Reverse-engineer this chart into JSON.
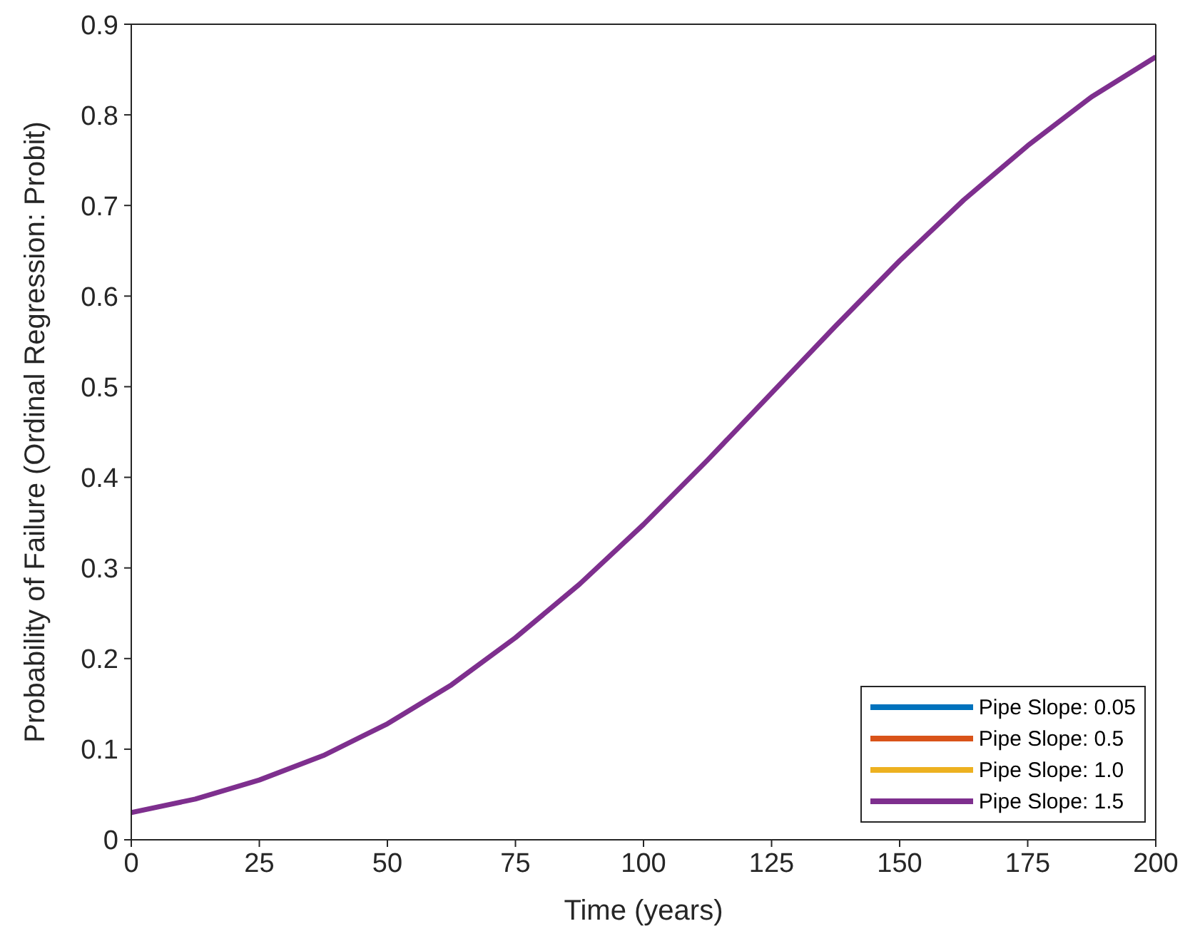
{
  "chart_data": {
    "type": "line",
    "xlabel": "Time (years)",
    "ylabel": "Probability of Failure (Ordinal Regression: Probit)",
    "x": [
      0,
      12.5,
      25,
      37.5,
      50,
      62.5,
      75,
      87.5,
      100,
      112.5,
      125,
      137.5,
      150,
      162.5,
      175,
      187.5,
      200
    ],
    "series": [
      {
        "name": "Pipe Slope: 0.05",
        "color": "#0072bd",
        "values": [
          null,
          null,
          null,
          null,
          null,
          null,
          null,
          null,
          null,
          null,
          null,
          null,
          null,
          null,
          null,
          null,
          null
        ]
      },
      {
        "name": "Pipe Slope: 0.5",
        "color": "#d95319",
        "values": [
          null,
          null,
          null,
          null,
          null,
          null,
          null,
          null,
          null,
          null,
          null,
          null,
          null,
          null,
          null,
          null,
          null
        ]
      },
      {
        "name": "Pipe Slope: 1.0",
        "color": "#edb120",
        "values": [
          null,
          null,
          null,
          null,
          null,
          null,
          null,
          null,
          null,
          null,
          null,
          null,
          null,
          null,
          null,
          null,
          null
        ]
      },
      {
        "name": "Pipe Slope: 1.5",
        "color": "#7e2f8e",
        "values": [
          0.03,
          0.045,
          0.066,
          0.093,
          0.128,
          0.171,
          0.223,
          0.282,
          0.348,
          0.419,
          0.493,
          0.567,
          0.639,
          0.706,
          0.766,
          0.82,
          0.864
        ]
      }
    ],
    "xlim": [
      0,
      200
    ],
    "xticks": [
      0,
      25,
      50,
      75,
      100,
      125,
      150,
      175,
      200
    ],
    "ylim": [
      0,
      0.9
    ],
    "yticks": [
      0,
      0.1,
      0.2,
      0.3,
      0.4,
      0.5,
      0.6,
      0.7,
      0.8,
      0.9
    ],
    "grid": false,
    "legend": "bottom right",
    "marker": "none",
    "line_style": "solid"
  }
}
